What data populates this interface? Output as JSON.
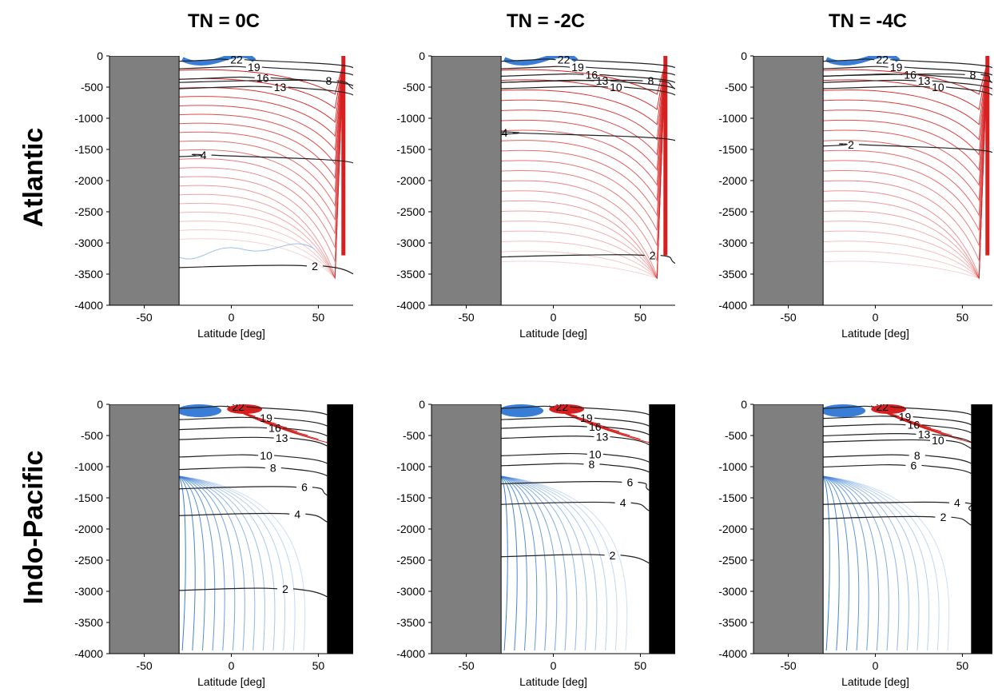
{
  "column_titles": [
    "TN = 0C",
    "TN = -2C",
    "TN = -4C"
  ],
  "row_titles": [
    "Atlantic",
    "Indo-Pacific"
  ],
  "chart_data": [
    {
      "type": "contour",
      "basin": "Atlantic",
      "case": "TN = 0C",
      "xlabel": "Latitude [deg]",
      "ylabel": "",
      "xticks": [
        -50,
        0,
        50
      ],
      "yticks": [
        0,
        -500,
        -1000,
        -1500,
        -2000,
        -2500,
        -3000,
        -3500,
        -4000
      ],
      "xlim": [
        -70,
        70
      ],
      "ylim": [
        -4000,
        0
      ],
      "land_south": [
        -70,
        -30
      ],
      "land_north": null,
      "contour_labels": [
        {
          "text": "22",
          "lat": 3,
          "depth": -60
        },
        {
          "text": "19",
          "lat": 13,
          "depth": -180
        },
        {
          "text": "16",
          "lat": 18,
          "depth": -350
        },
        {
          "text": "13",
          "lat": 28,
          "depth": -500
        },
        {
          "text": "8",
          "lat": 56,
          "depth": -400
        },
        {
          "text": "4",
          "lat": -16,
          "depth": -1590
        },
        {
          "text": "2",
          "lat": 48,
          "depth": -3370
        }
      ]
    },
    {
      "type": "contour",
      "basin": "Atlantic",
      "case": "TN = -2C",
      "xlabel": "Latitude [deg]",
      "ylabel": "",
      "xticks": [
        -50,
        0,
        50
      ],
      "yticks": [
        0,
        -500,
        -1000,
        -1500,
        -2000,
        -2500,
        -3000,
        -3500,
        -4000
      ],
      "xlim": [
        -70,
        70
      ],
      "ylim": [
        -4000,
        0
      ],
      "land_south": [
        -70,
        -30
      ],
      "land_north": null,
      "contour_labels": [
        {
          "text": "22",
          "lat": 6,
          "depth": -60
        },
        {
          "text": "19",
          "lat": 14,
          "depth": -180
        },
        {
          "text": "16",
          "lat": 22,
          "depth": -300
        },
        {
          "text": "13",
          "lat": 28,
          "depth": -400
        },
        {
          "text": "10",
          "lat": 36,
          "depth": -500
        },
        {
          "text": "8",
          "lat": 56,
          "depth": -400
        },
        {
          "text": "4",
          "lat": -28,
          "depth": -1230
        },
        {
          "text": "2",
          "lat": 57,
          "depth": -3200
        }
      ]
    },
    {
      "type": "contour",
      "basin": "Atlantic",
      "case": "TN = -4C",
      "xlabel": "Latitude [deg]",
      "ylabel": "",
      "xticks": [
        -50,
        0,
        50
      ],
      "yticks": [
        0,
        -500,
        -1000,
        -1500,
        -2000,
        -2500,
        -3000,
        -3500,
        -4000
      ],
      "xlim": [
        -70,
        70
      ],
      "ylim": [
        -4000,
        0
      ],
      "land_south": [
        -70,
        -30
      ],
      "land_north": null,
      "contour_labels": [
        {
          "text": "22",
          "lat": 4,
          "depth": -60
        },
        {
          "text": "19",
          "lat": 12,
          "depth": -180
        },
        {
          "text": "16",
          "lat": 20,
          "depth": -300
        },
        {
          "text": "13",
          "lat": 28,
          "depth": -400
        },
        {
          "text": "10",
          "lat": 36,
          "depth": -500
        },
        {
          "text": "8",
          "lat": 56,
          "depth": -300
        },
        {
          "text": "2",
          "lat": -14,
          "depth": -1420
        }
      ]
    },
    {
      "type": "contour",
      "basin": "Indo-Pacific",
      "case": "TN = 0C",
      "xlabel": "Latitude [deg]",
      "ylabel": "",
      "xticks": [
        -50,
        0,
        50
      ],
      "yticks": [
        0,
        -500,
        -1000,
        -1500,
        -2000,
        -2500,
        -3000,
        -3500,
        -4000
      ],
      "xlim": [
        -70,
        70
      ],
      "ylim": [
        -4000,
        0
      ],
      "land_south": [
        -70,
        -30
      ],
      "land_north": [
        55,
        70
      ],
      "contour_labels": [
        {
          "text": "22",
          "lat": 4,
          "depth": -40
        },
        {
          "text": "19",
          "lat": 20,
          "depth": -220
        },
        {
          "text": "16",
          "lat": 25,
          "depth": -380
        },
        {
          "text": "13",
          "lat": 29,
          "depth": -540
        },
        {
          "text": "10",
          "lat": 20,
          "depth": -820
        },
        {
          "text": "8",
          "lat": 24,
          "depth": -1020
        },
        {
          "text": "6",
          "lat": 42,
          "depth": -1330
        },
        {
          "text": "4",
          "lat": 38,
          "depth": -1760
        },
        {
          "text": "2",
          "lat": 31,
          "depth": -2960
        }
      ]
    },
    {
      "type": "contour",
      "basin": "Indo-Pacific",
      "case": "TN = -2C",
      "xlabel": "Latitude [deg]",
      "ylabel": "",
      "xticks": [
        -50,
        0,
        50
      ],
      "yticks": [
        0,
        -500,
        -1000,
        -1500,
        -2000,
        -2500,
        -3000,
        -3500,
        -4000
      ],
      "xlim": [
        -70,
        70
      ],
      "ylim": [
        -4000,
        0
      ],
      "land_south": [
        -70,
        -30
      ],
      "land_north": [
        55,
        70
      ],
      "contour_labels": [
        {
          "text": "22",
          "lat": 5,
          "depth": -40
        },
        {
          "text": "19",
          "lat": 19,
          "depth": -220
        },
        {
          "text": "16",
          "lat": 24,
          "depth": -360
        },
        {
          "text": "13",
          "lat": 28,
          "depth": -520
        },
        {
          "text": "10",
          "lat": 24,
          "depth": -800
        },
        {
          "text": "8",
          "lat": 22,
          "depth": -960
        },
        {
          "text": "6",
          "lat": 44,
          "depth": -1250
        },
        {
          "text": "4",
          "lat": 40,
          "depth": -1580
        },
        {
          "text": "2",
          "lat": 34,
          "depth": -2420
        }
      ]
    },
    {
      "type": "contour",
      "basin": "Indo-Pacific",
      "case": "TN = -4C",
      "xlabel": "Latitude [deg]",
      "ylabel": "",
      "xticks": [
        -50,
        0,
        50
      ],
      "yticks": [
        0,
        -500,
        -1000,
        -1500,
        -2000,
        -2500,
        -3000,
        -3500,
        -4000
      ],
      "xlim": [
        -70,
        70
      ],
      "ylim": [
        -4000,
        0
      ],
      "land_south": [
        -70,
        -30
      ],
      "land_north": [
        55,
        70
      ],
      "contour_labels": [
        {
          "text": "22",
          "lat": 4,
          "depth": -40
        },
        {
          "text": "19",
          "lat": 17,
          "depth": -200
        },
        {
          "text": "16",
          "lat": 22,
          "depth": -330
        },
        {
          "text": "13",
          "lat": 28,
          "depth": -480
        },
        {
          "text": "10",
          "lat": 36,
          "depth": -580
        },
        {
          "text": "8",
          "lat": 24,
          "depth": -820
        },
        {
          "text": "6",
          "lat": 22,
          "depth": -980
        },
        {
          "text": "4",
          "lat": 47,
          "depth": -1580
        },
        {
          "text": "2",
          "lat": 39,
          "depth": -1810
        }
      ]
    }
  ],
  "colors": {
    "land": "#7f7f7f",
    "land_north": "#000000",
    "positive": "#d62020",
    "negative": "#3a7dd6",
    "isotherm": "#222222"
  }
}
